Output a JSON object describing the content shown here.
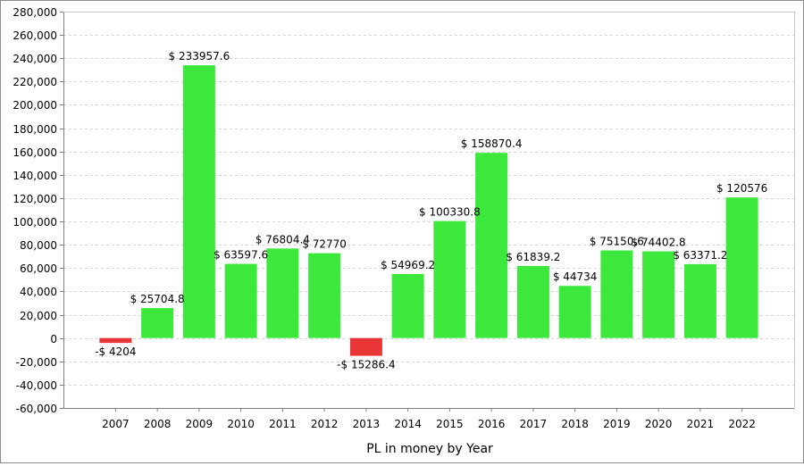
{
  "chart_data": {
    "type": "bar",
    "xlabel": "PL in money by Year",
    "ylabel": "",
    "ylim": [
      -60000,
      280000
    ],
    "y_ticks": [
      -60000,
      -40000,
      -20000,
      0,
      20000,
      40000,
      60000,
      80000,
      100000,
      120000,
      140000,
      160000,
      180000,
      200000,
      220000,
      240000,
      260000,
      280000
    ],
    "y_tick_labels": [
      "-60,000",
      "-40,000",
      "-20,000",
      "0",
      "20,000",
      "40,000",
      "60,000",
      "80,000",
      "100,000",
      "120,000",
      "140,000",
      "160,000",
      "180,000",
      "200,000",
      "220,000",
      "240,000",
      "260,000",
      "280,000"
    ],
    "grid": true,
    "categories": [
      "2007",
      "2008",
      "2009",
      "2010",
      "2011",
      "2012",
      "2013",
      "2014",
      "2015",
      "2016",
      "2017",
      "2018",
      "2019",
      "2020",
      "2021",
      "2022"
    ],
    "values": [
      -4204,
      25704.8,
      233957.6,
      63597.6,
      76804.4,
      72770,
      -15286.4,
      54969.2,
      100330.8,
      158870.4,
      61839.2,
      44734,
      75150.6,
      74402.8,
      63371.2,
      120576
    ],
    "data_labels": [
      "-$ 4204",
      "$ 25704.8",
      "$ 233957.6",
      "$ 63597.6",
      "$ 76804.4",
      "$ 72770",
      "-$ 15286.4",
      "$ 54969.2",
      "$ 100330.8",
      "$ 158870.4",
      "$ 61839.2",
      "$ 44734",
      "$ 75150.6",
      "$ 74402.8",
      "$ 63371.2",
      "$ 120576"
    ],
    "colors": {
      "positive": "#3de83d",
      "negative": "#e83535",
      "grid": "#d4d4d4",
      "axis": "#7f7f7f",
      "text": "#000000"
    }
  }
}
